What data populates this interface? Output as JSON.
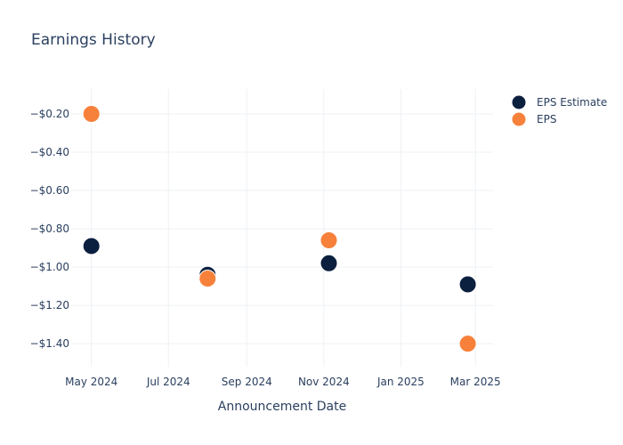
{
  "chart_data": {
    "type": "scatter",
    "title": "Earnings History",
    "xlabel": "Announcement Date",
    "ylabel": "",
    "x_ticks": [
      "May 2024",
      "Jul 2024",
      "Sep 2024",
      "Nov 2024",
      "Jan 2025",
      "Mar 2025"
    ],
    "x_tick_dates": [
      "2024-05-01",
      "2024-07-01",
      "2024-09-01",
      "2024-11-01",
      "2025-01-01",
      "2025-03-01"
    ],
    "xlim": [
      "2024-04-15",
      "2025-03-15"
    ],
    "y_ticks": [
      -0.2,
      -0.4,
      -0.6,
      -0.8,
      -1.0,
      -1.2,
      -1.4
    ],
    "y_tick_labels": [
      "−$0.20",
      "−$0.40",
      "−$0.60",
      "−$0.80",
      "−$1.00",
      "−$1.20",
      "−$1.40"
    ],
    "ylim": [
      -1.52,
      -0.07
    ],
    "grid": true,
    "legend_position": "top-right",
    "series": [
      {
        "name": "EPS Estimate",
        "color": "#0b1f3f",
        "points": [
          {
            "x": "2024-05-01",
            "y": -0.89
          },
          {
            "x": "2024-08-01",
            "y": -1.04
          },
          {
            "x": "2024-11-05",
            "y": -0.98
          },
          {
            "x": "2025-02-23",
            "y": -1.09
          }
        ]
      },
      {
        "name": "EPS",
        "color": "#f7813a",
        "points": [
          {
            "x": "2024-05-01",
            "y": -0.2
          },
          {
            "x": "2024-08-01",
            "y": -1.06
          },
          {
            "x": "2024-11-05",
            "y": -0.86
          },
          {
            "x": "2025-02-23",
            "y": -1.4
          }
        ]
      }
    ]
  }
}
